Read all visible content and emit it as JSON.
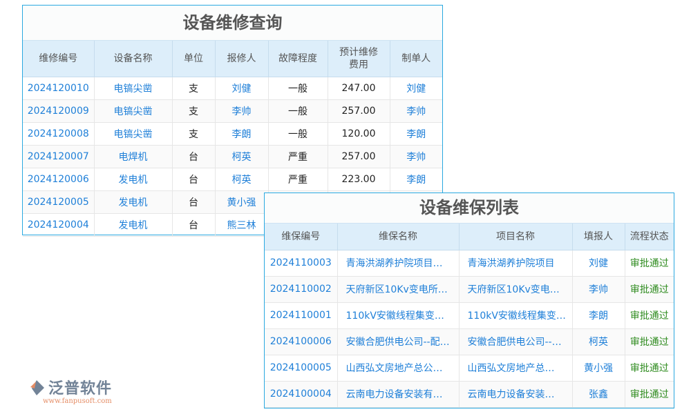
{
  "repair": {
    "title": "设备维修查询",
    "headers": [
      "维修编号",
      "设备名称",
      "单位",
      "报修人",
      "故障程度",
      "预计维修\n费用",
      "制单人"
    ],
    "rows": [
      [
        "2024120010",
        "电镐尖凿",
        "支",
        "刘健",
        "一般",
        "247.00",
        "刘健"
      ],
      [
        "2024120009",
        "电镐尖凿",
        "支",
        "李帅",
        "一般",
        "257.00",
        "李帅"
      ],
      [
        "2024120008",
        "电镐尖凿",
        "支",
        "李朗",
        "一般",
        "120.00",
        "李朗"
      ],
      [
        "2024120007",
        "电焊机",
        "台",
        "柯英",
        "严重",
        "257.00",
        "李帅"
      ],
      [
        "2024120006",
        "发电机",
        "台",
        "柯英",
        "严重",
        "223.00",
        "李朗"
      ],
      [
        "2024120005",
        "发电机",
        "台",
        "黄小强",
        "",
        "",
        ""
      ],
      [
        "2024120004",
        "发电机",
        "台",
        "熊三林",
        "",
        "",
        ""
      ]
    ]
  },
  "maint": {
    "title": "设备维保列表",
    "headers": [
      "维保编号",
      "维保名称",
      "项目名称",
      "填报人",
      "流程状态"
    ],
    "rows": [
      [
        "2024110003",
        "青海洪湖养护院项目…",
        "青海洪湖养护院项目",
        "刘健",
        "审批通过"
      ],
      [
        "2024110002",
        "天府新区10Kv变电所…",
        "天府新区10Kv变电…",
        "李帅",
        "审批通过"
      ],
      [
        "2024110001",
        "110kV安徽线程集变…",
        "110kV安徽线程集变…",
        "李朗",
        "审批通过"
      ],
      [
        "2024100006",
        "安徽合肥供电公司--配…",
        "安徽合肥供电公司--…",
        "柯英",
        "审批通过"
      ],
      [
        "2024100005",
        "山西弘文房地产总公…",
        "山西弘文房地产总…",
        "黄小强",
        "审批通过"
      ],
      [
        "2024100004",
        "云南电力设备安装有…",
        "云南电力设备安装…",
        "张鑫",
        "审批通过"
      ]
    ]
  },
  "watermark": {
    "name": "泛普软件",
    "url": "www.fanpusoft.com"
  }
}
